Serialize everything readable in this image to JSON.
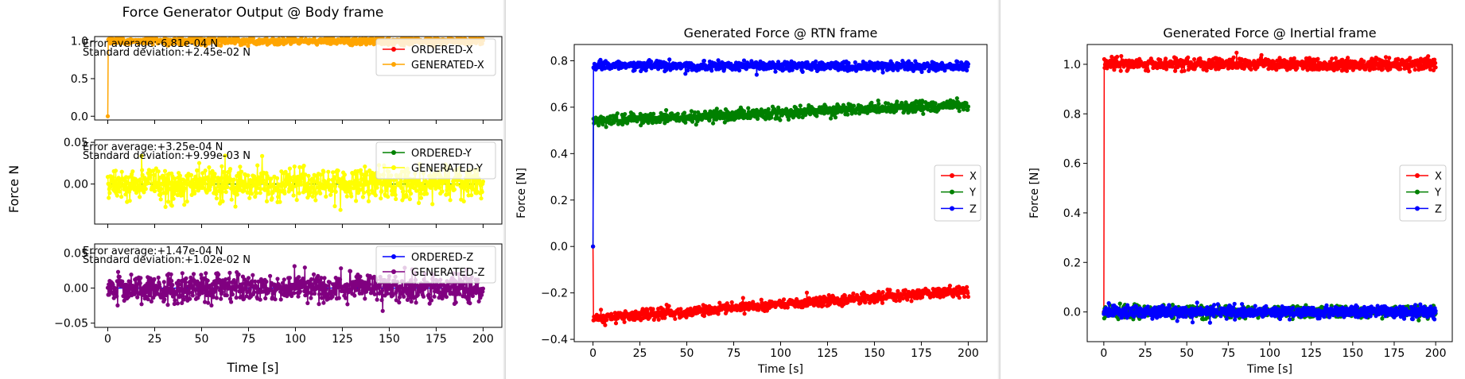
{
  "left_figure": {
    "title": "Force Generator Output @ Body frame",
    "ylabel": "Force N",
    "xlabel": "Time [s]"
  },
  "chart_data": [
    {
      "type": "line",
      "title": "",
      "xlabel": "",
      "ylabel": "",
      "xlim": [
        -7,
        210
      ],
      "ylim": [
        -0.05,
        1.06
      ],
      "xticks": [
        0,
        25,
        50,
        75,
        100,
        125,
        150,
        175,
        200
      ],
      "yticks": [
        0.0,
        0.5,
        1.0
      ],
      "tick_labels_y": [
        "0.0",
        "0.5",
        "1.0"
      ],
      "show_x_tick_labels": false,
      "annotations": [
        "Error average:-6.81e-04 N",
        "Standard deviation:+2.45e-02 N"
      ],
      "legend": {
        "position": "upper-right",
        "entries": [
          "ORDERED-X",
          "GENERATED-X"
        ]
      },
      "series": [
        {
          "name": "ORDERED-X",
          "color": "#ff0000",
          "base": [
            [
              0,
              1.0
            ],
            [
              200,
              1.0
            ]
          ],
          "noise_sd": 0,
          "jump_from_zero": false
        },
        {
          "name": "GENERATED-X",
          "color": "#ffa500",
          "base": [
            [
              0,
              1.0
            ],
            [
              200,
              1.0
            ]
          ],
          "noise_sd": 0.0245,
          "jump_from_zero": true
        }
      ]
    },
    {
      "type": "line",
      "title": "",
      "xlabel": "",
      "ylabel": "",
      "xlim": [
        -7,
        210
      ],
      "ylim": [
        -0.048,
        0.053
      ],
      "xticks": [
        0,
        25,
        50,
        75,
        100,
        125,
        150,
        175,
        200
      ],
      "yticks": [
        0.0,
        0.05
      ],
      "tick_labels_y": [
        "0.00",
        "0.05"
      ],
      "show_x_tick_labels": false,
      "annotations": [
        "Error average:+3.25e-04 N",
        "Standard deviation:+9.99e-03 N"
      ],
      "legend": {
        "position": "upper-right",
        "entries": [
          "ORDERED-Y",
          "GENERATED-Y"
        ]
      },
      "series": [
        {
          "name": "ORDERED-Y",
          "color": "#008000",
          "base": [
            [
              0,
              0.0
            ],
            [
              200,
              0.0
            ]
          ],
          "noise_sd": 0,
          "jump_from_zero": false
        },
        {
          "name": "GENERATED-Y",
          "color": "#ffff00",
          "base": [
            [
              0,
              0.0
            ],
            [
              200,
              0.0
            ]
          ],
          "noise_sd": 0.0099,
          "jump_from_zero": false
        }
      ]
    },
    {
      "type": "line",
      "title": "",
      "xlabel": "",
      "ylabel": "",
      "xlim": [
        -7,
        210
      ],
      "ylim": [
        -0.056,
        0.063
      ],
      "xticks": [
        0,
        25,
        50,
        75,
        100,
        125,
        150,
        175,
        200
      ],
      "yticks": [
        -0.05,
        0.0,
        0.05
      ],
      "tick_labels_y": [
        "−0.05",
        "0.00",
        "0.05"
      ],
      "show_x_tick_labels": true,
      "annotations": [
        "Error average:+1.47e-04 N",
        "Standard deviation:+1.02e-02 N"
      ],
      "legend": {
        "position": "upper-right",
        "entries": [
          "ORDERED-Z",
          "GENERATED-Z"
        ]
      },
      "series": [
        {
          "name": "ORDERED-Z",
          "color": "#0000ff",
          "base": [
            [
              0,
              0.0
            ],
            [
              200,
              0.0
            ]
          ],
          "noise_sd": 0,
          "jump_from_zero": false
        },
        {
          "name": "GENERATED-Z",
          "color": "#800080",
          "base": [
            [
              0,
              0.0
            ],
            [
              200,
              0.0
            ]
          ],
          "noise_sd": 0.0102,
          "jump_from_zero": false
        }
      ]
    },
    {
      "type": "line",
      "title": "Generated Force @ RTN frame",
      "xlabel": "Time [s]",
      "ylabel": "Force [N]",
      "xlim": [
        -10,
        210
      ],
      "ylim": [
        -0.41,
        0.87
      ],
      "xticks": [
        0,
        25,
        50,
        75,
        100,
        125,
        150,
        175,
        200
      ],
      "yticks": [
        -0.4,
        -0.2,
        0.0,
        0.2,
        0.4,
        0.6,
        0.8
      ],
      "tick_labels_y": [
        "−0.4",
        "−0.2",
        "0.0",
        "0.2",
        "0.4",
        "0.6",
        "0.8"
      ],
      "show_x_tick_labels": true,
      "annotations": [],
      "legend": {
        "position": "center-right",
        "entries": [
          "X",
          "Y",
          "Z"
        ]
      },
      "series": [
        {
          "name": "X",
          "color": "#ff0000",
          "base": [
            [
              0,
              -0.31
            ],
            [
              200,
              -0.19
            ]
          ],
          "noise_sd": 0.012,
          "jump_from_zero": true
        },
        {
          "name": "Y",
          "color": "#008000",
          "base": [
            [
              0,
              0.54
            ],
            [
              200,
              0.61
            ]
          ],
          "noise_sd": 0.012,
          "jump_from_zero": true
        },
        {
          "name": "Z",
          "color": "#0000ff",
          "base": [
            [
              0,
              0.78
            ],
            [
              200,
              0.775
            ]
          ],
          "noise_sd": 0.01,
          "jump_from_zero": true
        }
      ]
    },
    {
      "type": "line",
      "title": "Generated Force @ Inertial frame",
      "xlabel": "Time [s]",
      "ylabel": "Force [N]",
      "xlim": [
        -10,
        210
      ],
      "ylim": [
        -0.12,
        1.08
      ],
      "xticks": [
        0,
        25,
        50,
        75,
        100,
        125,
        150,
        175,
        200
      ],
      "yticks": [
        0.0,
        0.2,
        0.4,
        0.6,
        0.8,
        1.0
      ],
      "tick_labels_y": [
        "0.0",
        "0.2",
        "0.4",
        "0.6",
        "0.8",
        "1.0"
      ],
      "show_x_tick_labels": true,
      "annotations": [],
      "legend": {
        "position": "center-right",
        "entries": [
          "X",
          "Y",
          "Z"
        ]
      },
      "series": [
        {
          "name": "X",
          "color": "#ff0000",
          "base": [
            [
              0,
              1.0
            ],
            [
              200,
              1.0
            ]
          ],
          "noise_sd": 0.012,
          "jump_from_zero": true
        },
        {
          "name": "Y",
          "color": "#008000",
          "base": [
            [
              0,
              0.0
            ],
            [
              200,
              0.0
            ]
          ],
          "noise_sd": 0.012,
          "jump_from_zero": false
        },
        {
          "name": "Z",
          "color": "#0000ff",
          "base": [
            [
              0,
              0.0
            ],
            [
              200,
              0.0
            ]
          ],
          "noise_sd": 0.012,
          "jump_from_zero": false
        }
      ]
    }
  ]
}
